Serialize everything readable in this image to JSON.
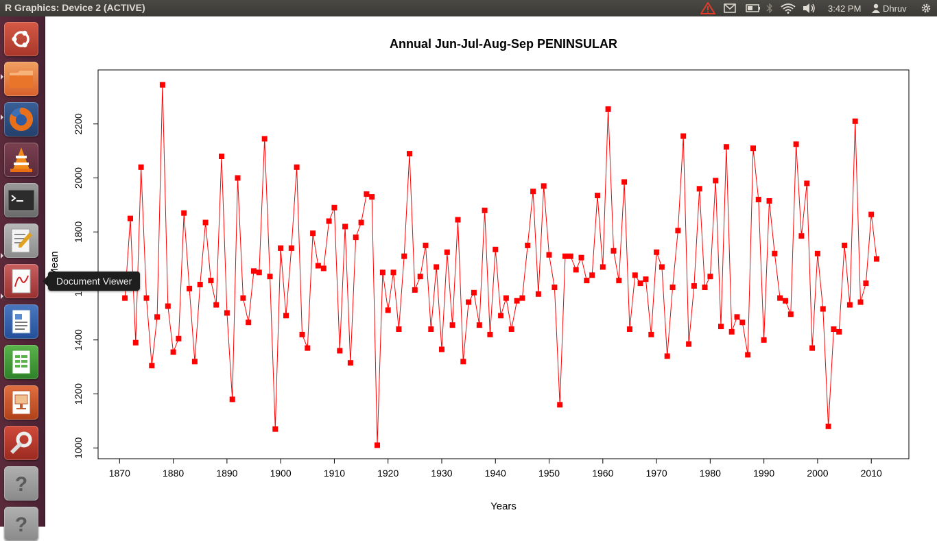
{
  "window": {
    "title": "R Graphics: Device 2 (ACTIVE)"
  },
  "panel": {
    "time": "3:42 PM",
    "user": "Dhruv",
    "icons": [
      "warning-icon",
      "mail-icon",
      "battery-icon",
      "bluetooth-icon",
      "wifi-icon",
      "volume-icon",
      "user-icon",
      "gear-icon"
    ]
  },
  "launcher": {
    "items": [
      {
        "name": "ubuntu-dash",
        "icon": "ubuntu-logo-icon",
        "color": "#c34a3a"
      },
      {
        "name": "files",
        "icon": "folder-icon",
        "color": "#e8752a"
      },
      {
        "name": "firefox",
        "icon": "firefox-icon",
        "color": "#3b6fb6"
      },
      {
        "name": "vlc",
        "icon": "vlc-cone-icon",
        "color": "#e8851a"
      },
      {
        "name": "terminal",
        "icon": "terminal-icon",
        "color": "#2c2c2c"
      },
      {
        "name": "text-editor",
        "icon": "text-editor-icon",
        "color": "#d8d8d8"
      },
      {
        "name": "document-viewer",
        "icon": "document-viewer-icon",
        "color": "#c8c8c8"
      },
      {
        "name": "libreoffice-writer",
        "icon": "writer-icon",
        "color": "#2a5da8"
      },
      {
        "name": "libreoffice-calc",
        "icon": "calc-icon",
        "color": "#3d9a3a"
      },
      {
        "name": "libreoffice-impress",
        "icon": "impress-icon",
        "color": "#c24a20"
      },
      {
        "name": "system-settings",
        "icon": "settings-icon",
        "color": "#c23a2a"
      },
      {
        "name": "unknown-app",
        "icon": "question-icon",
        "color": "#9a9a9a"
      },
      {
        "name": "unknown-app-2",
        "icon": "question-icon",
        "color": "#9a9a9a"
      }
    ],
    "tooltip": "Document Viewer"
  },
  "chart_data": {
    "type": "line",
    "title": "Annual Jun-Jul-Aug-Sep PENINSULAR",
    "xlabel": "Years",
    "ylabel": "Mean",
    "xlim": [
      1866,
      2017
    ],
    "ylim": [
      960,
      2400
    ],
    "xticks": [
      1870,
      1880,
      1890,
      1900,
      1910,
      1920,
      1930,
      1940,
      1950,
      1960,
      1970,
      1980,
      1990,
      2000,
      2010
    ],
    "yticks": [
      1000,
      1200,
      1400,
      1600,
      1800,
      2000,
      2200
    ],
    "line_color": "#ff0000",
    "marker_color": "#ff0000",
    "marker": "square",
    "x_start": 1871,
    "values": [
      1555,
      1850,
      1390,
      2040,
      1555,
      1305,
      1485,
      2345,
      1525,
      1355,
      1405,
      1870,
      1590,
      1320,
      1605,
      1835,
      1620,
      1530,
      2080,
      1500,
      1180,
      2000,
      1555,
      1465,
      1655,
      1650,
      2145,
      1635,
      1070,
      1740,
      1490,
      1740,
      2040,
      1420,
      1370,
      1795,
      1675,
      1665,
      1840,
      1890,
      1360,
      1820,
      1315,
      1780,
      1835,
      1940,
      1930,
      1010,
      1650,
      1510,
      1650,
      1440,
      1710,
      2090,
      1585,
      1635,
      1750,
      1440,
      1670,
      1365,
      1725,
      1455,
      1845,
      1320,
      1540,
      1575,
      1455,
      1880,
      1420,
      1735,
      1490,
      1555,
      1440,
      1545,
      1555,
      1750,
      1950,
      1570,
      1970,
      1715,
      1595,
      1160,
      1710,
      1710,
      1660,
      1705,
      1620,
      1640,
      1935,
      1670,
      2255,
      1730,
      1620,
      1985,
      1440,
      1640,
      1610,
      1625,
      1420,
      1725,
      1670,
      1340,
      1595,
      1805,
      2155,
      1385,
      1600,
      1960,
      1595,
      1635,
      1990,
      1450,
      2115,
      1430,
      1485,
      1465,
      1345,
      2110,
      1920,
      1400,
      1915,
      1720,
      1555,
      1545,
      1495,
      2125,
      1785,
      1980,
      1370,
      1720,
      1515,
      1080,
      1440,
      1430,
      1750,
      1530,
      2210,
      1540,
      1610,
      1865,
      1700
    ]
  }
}
